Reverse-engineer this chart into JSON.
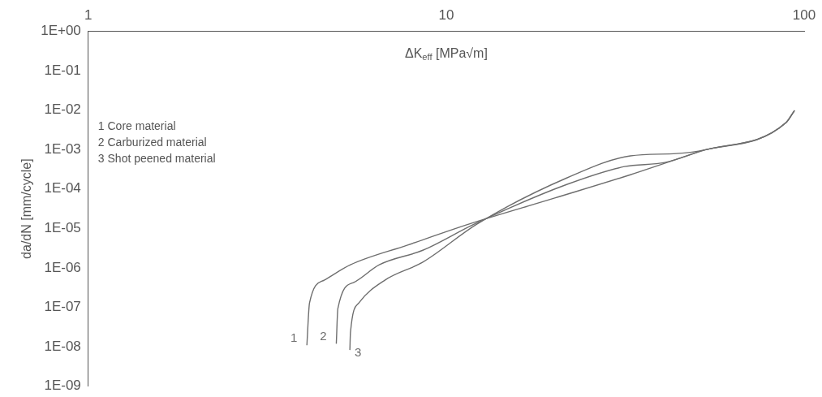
{
  "chart_data": {
    "type": "line",
    "xlabel": "ΔK$_{eff}$ [MPa√m]",
    "ylabel": "da/dN [mm/cycle]",
    "log": "xy",
    "xlim": [
      1,
      100
    ],
    "xticks": [
      1,
      10,
      100
    ],
    "ylim": [
      1e-09,
      1
    ],
    "yticks": [
      {
        "value": 1,
        "label": "1E+00"
      },
      {
        "value": 0.1,
        "label": "1E-01"
      },
      {
        "value": 0.01,
        "label": "1E-02"
      },
      {
        "value": 0.001,
        "label": "1E-03"
      },
      {
        "value": 0.0001,
        "label": "1E-04"
      },
      {
        "value": 1e-05,
        "label": "1E-05"
      },
      {
        "value": 1e-06,
        "label": "1E-06"
      },
      {
        "value": 1e-07,
        "label": "1E-07"
      },
      {
        "value": 1e-08,
        "label": "1E-08"
      },
      {
        "value": 1e-09,
        "label": "1E-09"
      }
    ],
    "grid": false,
    "marker": "none",
    "line_style": "solid",
    "series": [
      {
        "name": "1",
        "color": "#6e6e6e",
        "x": [
          4.08,
          4.15,
          4.56,
          5.4,
          7.8,
          11.6,
          20.1,
          32.7,
          51,
          89,
          94
        ],
        "values": [
          1.1e-08,
          1.3e-07,
          4.9e-07,
          1.2e-06,
          3.8e-06,
          1.3e-05,
          5.9e-05,
          0.00023,
          0.00089,
          0.0048,
          0.0098
        ]
      },
      {
        "name": "2",
        "color": "#6e6e6e",
        "x": [
          4.93,
          4.98,
          5.52,
          6.5,
          8.6,
          12,
          21.7,
          31.5,
          40.8,
          51,
          89,
          94
        ],
        "values": [
          1.2e-08,
          9.3e-08,
          4.3e-07,
          1.2e-06,
          2.8e-06,
          1.3e-05,
          0.00013,
          0.00037,
          0.00047,
          0.00089,
          0.0048,
          0.0098
        ]
      },
      {
        "name": "3",
        "color": "#6e6e6e",
        "x": [
          5.38,
          5.4,
          5.7,
          6.74,
          8.6,
          12.2,
          21.7,
          32.7,
          44,
          52.7,
          89,
          94
        ],
        "values": [
          8.3e-09,
          2.3e-08,
          1.3e-07,
          4.9e-07,
          1.4e-06,
          1.3e-05,
          0.00019,
          0.00069,
          0.00079,
          0.00098,
          0.0048,
          0.0098
        ]
      }
    ],
    "annotations": [
      "1 Core material",
      "2 Carburized material",
      "3 Shot peened material"
    ]
  }
}
